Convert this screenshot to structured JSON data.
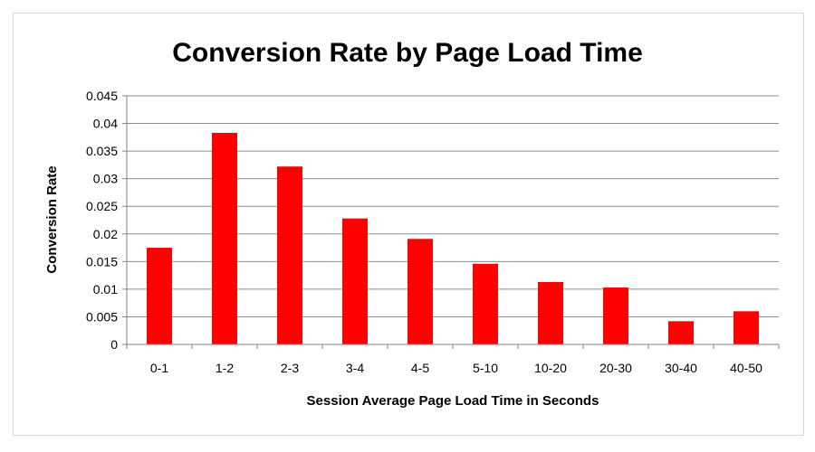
{
  "chart_data": {
    "type": "bar",
    "title": "Conversion Rate by Page Load Time",
    "xlabel": "Session Average Page Load Time in Seconds",
    "ylabel": "Conversion Rate",
    "categories": [
      "0-1",
      "1-2",
      "2-3",
      "3-4",
      "4-5",
      "5-10",
      "10-20",
      "20-30",
      "30-40",
      "40-50"
    ],
    "values": [
      0.0175,
      0.0383,
      0.0322,
      0.0228,
      0.0191,
      0.0146,
      0.0113,
      0.0103,
      0.0042,
      0.006
    ],
    "ylim": [
      0,
      0.045
    ],
    "yticks": [
      "0",
      "0.005",
      "0.01",
      "0.015",
      "0.02",
      "0.025",
      "0.03",
      "0.035",
      "0.04",
      "0.045"
    ],
    "grid": true,
    "legend": "none",
    "bar_color": "#ff0000"
  }
}
